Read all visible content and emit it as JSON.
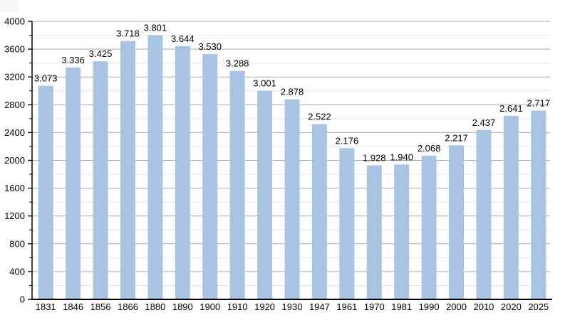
{
  "chart_data": {
    "type": "bar",
    "title": "",
    "xlabel": "",
    "ylabel": "",
    "categories": [
      "1831",
      "1846",
      "1856",
      "1866",
      "1880",
      "1890",
      "1900",
      "1910",
      "1920",
      "1930",
      "1947",
      "1961",
      "1970",
      "1981",
      "1990",
      "2000",
      "2010",
      "2020",
      "2025"
    ],
    "values": [
      3073,
      3336,
      3425,
      3718,
      3801,
      3644,
      3530,
      3288,
      3001,
      2878,
      2522,
      2176,
      1928,
      1940,
      2068,
      2217,
      2437,
      2641,
      2717
    ],
    "value_labels": [
      "3.073",
      "3.336",
      "3.425",
      "3.718",
      "3.801",
      "3.644",
      "3.530",
      "3.288",
      "3.001",
      "2.878",
      "2.522",
      "2.176",
      "1.928",
      "1.940",
      "2.068",
      "2.217",
      "2.437",
      "2.641",
      "2.717"
    ],
    "ylim": [
      0,
      4000
    ],
    "y_major_step": 400,
    "y_minor_step": 200,
    "y_tick_labels": [
      "0",
      "400",
      "800",
      "1200",
      "1600",
      "2000",
      "2400",
      "2800",
      "3200",
      "3600",
      "4000"
    ],
    "grid": true,
    "legend": false,
    "colors": {
      "bar": "#a9c4e2",
      "major_grid": "#ababab",
      "minor_grid": "#e4e4e4",
      "axis": "#000000",
      "text": "#000000",
      "background": "#ffffff"
    }
  }
}
